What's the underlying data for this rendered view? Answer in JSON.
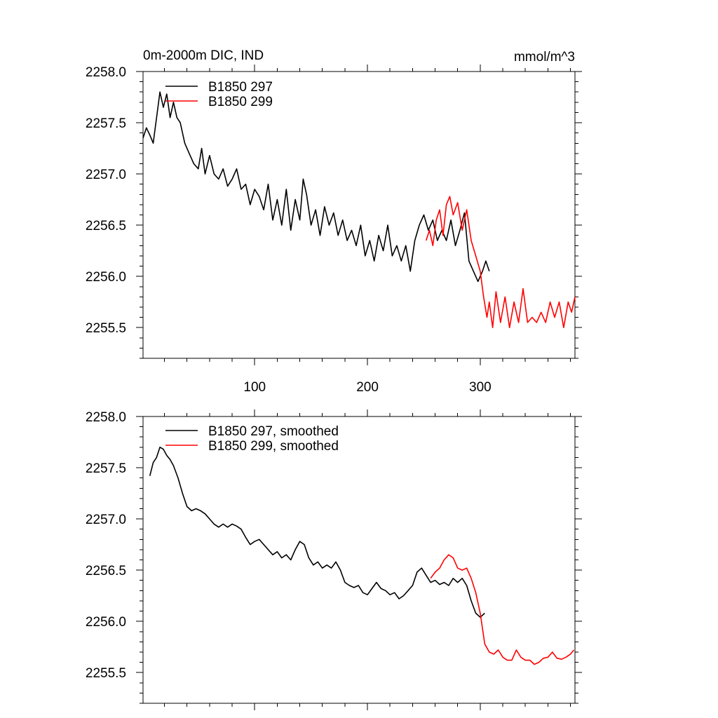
{
  "colors": {
    "black_series": "#000000",
    "red_series": "#ff0000"
  },
  "chart_data": [
    {
      "type": "line",
      "title": "0m-2000m DIC, IND",
      "units": "mmol/m^3",
      "xlim": [
        1,
        384
      ],
      "ylim": [
        2255.2,
        2258.0
      ],
      "xticks": [
        100,
        200,
        300
      ],
      "xtick_labels": [
        "100",
        "200",
        "300"
      ],
      "yticks": [
        2255.5,
        2256.0,
        2256.5,
        2257.0,
        2257.5,
        2258.0
      ],
      "ytick_labels": [
        "2255.5",
        "2256.0",
        "2256.5",
        "2257.0",
        "2257.5",
        "2258.0"
      ],
      "legend_position": "top-left",
      "series": [
        {
          "name": "B1850 297",
          "color": "#000000",
          "points": [
            [
              1,
              2257.35
            ],
            [
              4,
              2257.45
            ],
            [
              7,
              2257.38
            ],
            [
              10,
              2257.3
            ],
            [
              13,
              2257.55
            ],
            [
              16,
              2257.8
            ],
            [
              19,
              2257.65
            ],
            [
              22,
              2257.78
            ],
            [
              25,
              2257.55
            ],
            [
              28,
              2257.7
            ],
            [
              31,
              2257.55
            ],
            [
              34,
              2257.5
            ],
            [
              38,
              2257.3
            ],
            [
              42,
              2257.2
            ],
            [
              46,
              2257.1
            ],
            [
              50,
              2257.05
            ],
            [
              53,
              2257.25
            ],
            [
              56,
              2257.0
            ],
            [
              60,
              2257.18
            ],
            [
              64,
              2257.0
            ],
            [
              68,
              2256.95
            ],
            [
              72,
              2257.05
            ],
            [
              76,
              2256.88
            ],
            [
              80,
              2256.95
            ],
            [
              84,
              2257.05
            ],
            [
              88,
              2256.85
            ],
            [
              92,
              2256.9
            ],
            [
              96,
              2256.7
            ],
            [
              100,
              2256.85
            ],
            [
              104,
              2256.78
            ],
            [
              108,
              2256.65
            ],
            [
              112,
              2256.9
            ],
            [
              116,
              2256.55
            ],
            [
              120,
              2256.75
            ],
            [
              124,
              2256.5
            ],
            [
              128,
              2256.85
            ],
            [
              132,
              2256.45
            ],
            [
              136,
              2256.75
            ],
            [
              140,
              2256.55
            ],
            [
              143,
              2256.95
            ],
            [
              146,
              2256.8
            ],
            [
              150,
              2256.5
            ],
            [
              154,
              2256.65
            ],
            [
              158,
              2256.4
            ],
            [
              162,
              2256.68
            ],
            [
              166,
              2256.5
            ],
            [
              170,
              2256.62
            ],
            [
              174,
              2256.4
            ],
            [
              178,
              2256.55
            ],
            [
              182,
              2256.35
            ],
            [
              186,
              2256.45
            ],
            [
              190,
              2256.3
            ],
            [
              194,
              2256.5
            ],
            [
              198,
              2256.2
            ],
            [
              202,
              2256.35
            ],
            [
              206,
              2256.15
            ],
            [
              210,
              2256.4
            ],
            [
              214,
              2256.25
            ],
            [
              218,
              2256.5
            ],
            [
              222,
              2256.2
            ],
            [
              226,
              2256.3
            ],
            [
              230,
              2256.15
            ],
            [
              234,
              2256.3
            ],
            [
              238,
              2256.05
            ],
            [
              242,
              2256.35
            ],
            [
              246,
              2256.5
            ],
            [
              250,
              2256.6
            ],
            [
              254,
              2256.45
            ],
            [
              258,
              2256.55
            ],
            [
              262,
              2256.35
            ],
            [
              266,
              2256.45
            ],
            [
              270,
              2256.35
            ],
            [
              274,
              2256.55
            ],
            [
              278,
              2256.3
            ],
            [
              282,
              2256.45
            ],
            [
              286,
              2256.62
            ],
            [
              290,
              2256.15
            ],
            [
              294,
              2256.05
            ],
            [
              298,
              2255.95
            ],
            [
              302,
              2256.05
            ],
            [
              305,
              2256.15
            ],
            [
              308,
              2256.05
            ]
          ]
        },
        {
          "name": "B1850 299",
          "color": "#ff0000",
          "points": [
            [
              252,
              2256.35
            ],
            [
              255,
              2256.45
            ],
            [
              258,
              2256.3
            ],
            [
              261,
              2256.55
            ],
            [
              264,
              2256.65
            ],
            [
              267,
              2256.4
            ],
            [
              270,
              2256.7
            ],
            [
              273,
              2256.78
            ],
            [
              276,
              2256.6
            ],
            [
              280,
              2256.72
            ],
            [
              284,
              2256.45
            ],
            [
              288,
              2256.65
            ],
            [
              292,
              2256.35
            ],
            [
              296,
              2256.2
            ],
            [
              300,
              2256.05
            ],
            [
              303,
              2255.8
            ],
            [
              306,
              2255.6
            ],
            [
              308,
              2255.75
            ],
            [
              311,
              2255.5
            ],
            [
              314,
              2255.85
            ],
            [
              318,
              2255.55
            ],
            [
              322,
              2255.8
            ],
            [
              326,
              2255.5
            ],
            [
              330,
              2255.75
            ],
            [
              334,
              2255.55
            ],
            [
              338,
              2255.88
            ],
            [
              342,
              2255.55
            ],
            [
              346,
              2255.6
            ],
            [
              350,
              2255.55
            ],
            [
              354,
              2255.65
            ],
            [
              358,
              2255.55
            ],
            [
              362,
              2255.75
            ],
            [
              366,
              2255.6
            ],
            [
              370,
              2255.75
            ],
            [
              374,
              2255.5
            ],
            [
              378,
              2255.75
            ],
            [
              381,
              2255.65
            ],
            [
              384,
              2255.8
            ]
          ]
        }
      ]
    },
    {
      "type": "line",
      "title": "",
      "units": "",
      "xlim": [
        1,
        384
      ],
      "ylim": [
        2255.2,
        2258.0
      ],
      "xticks": [
        100,
        200,
        300
      ],
      "xtick_labels": [],
      "yticks": [
        2255.5,
        2256.0,
        2256.5,
        2257.0,
        2257.5,
        2258.0
      ],
      "ytick_labels": [
        "2255.5",
        "2256.0",
        "2256.5",
        "2257.0",
        "2257.5",
        "2258.0"
      ],
      "legend_position": "top-left",
      "series": [
        {
          "name": "B1850 297, smoothed",
          "color": "#000000",
          "points": [
            [
              7,
              2257.42
            ],
            [
              10,
              2257.55
            ],
            [
              13,
              2257.6
            ],
            [
              16,
              2257.7
            ],
            [
              19,
              2257.68
            ],
            [
              22,
              2257.62
            ],
            [
              25,
              2257.58
            ],
            [
              28,
              2257.52
            ],
            [
              32,
              2257.4
            ],
            [
              36,
              2257.25
            ],
            [
              40,
              2257.12
            ],
            [
              44,
              2257.08
            ],
            [
              48,
              2257.1
            ],
            [
              52,
              2257.08
            ],
            [
              56,
              2257.05
            ],
            [
              60,
              2257.0
            ],
            [
              64,
              2256.95
            ],
            [
              68,
              2256.92
            ],
            [
              72,
              2256.95
            ],
            [
              76,
              2256.92
            ],
            [
              80,
              2256.95
            ],
            [
              84,
              2256.93
            ],
            [
              88,
              2256.9
            ],
            [
              92,
              2256.82
            ],
            [
              96,
              2256.75
            ],
            [
              100,
              2256.78
            ],
            [
              104,
              2256.8
            ],
            [
              108,
              2256.75
            ],
            [
              112,
              2256.7
            ],
            [
              116,
              2256.65
            ],
            [
              120,
              2256.68
            ],
            [
              124,
              2256.62
            ],
            [
              128,
              2256.65
            ],
            [
              132,
              2256.6
            ],
            [
              136,
              2256.7
            ],
            [
              140,
              2256.78
            ],
            [
              144,
              2256.75
            ],
            [
              148,
              2256.62
            ],
            [
              152,
              2256.55
            ],
            [
              156,
              2256.58
            ],
            [
              160,
              2256.52
            ],
            [
              164,
              2256.55
            ],
            [
              168,
              2256.52
            ],
            [
              172,
              2256.58
            ],
            [
              176,
              2256.5
            ],
            [
              180,
              2256.38
            ],
            [
              184,
              2256.35
            ],
            [
              188,
              2256.33
            ],
            [
              192,
              2256.35
            ],
            [
              196,
              2256.28
            ],
            [
              200,
              2256.26
            ],
            [
              204,
              2256.32
            ],
            [
              208,
              2256.38
            ],
            [
              212,
              2256.32
            ],
            [
              216,
              2256.3
            ],
            [
              220,
              2256.26
            ],
            [
              224,
              2256.28
            ],
            [
              228,
              2256.22
            ],
            [
              232,
              2256.25
            ],
            [
              236,
              2256.3
            ],
            [
              240,
              2256.35
            ],
            [
              244,
              2256.48
            ],
            [
              248,
              2256.52
            ],
            [
              252,
              2256.45
            ],
            [
              256,
              2256.38
            ],
            [
              260,
              2256.4
            ],
            [
              264,
              2256.36
            ],
            [
              268,
              2256.38
            ],
            [
              272,
              2256.35
            ],
            [
              276,
              2256.42
            ],
            [
              280,
              2256.38
            ],
            [
              284,
              2256.42
            ],
            [
              288,
              2256.35
            ],
            [
              292,
              2256.2
            ],
            [
              296,
              2256.08
            ],
            [
              300,
              2256.04
            ],
            [
              304,
              2256.08
            ]
          ]
        },
        {
          "name": "B1850 299, smoothed",
          "color": "#ff0000",
          "points": [
            [
              256,
              2256.42
            ],
            [
              260,
              2256.48
            ],
            [
              264,
              2256.52
            ],
            [
              268,
              2256.6
            ],
            [
              272,
              2256.65
            ],
            [
              276,
              2256.62
            ],
            [
              280,
              2256.52
            ],
            [
              284,
              2256.5
            ],
            [
              288,
              2256.52
            ],
            [
              292,
              2256.42
            ],
            [
              296,
              2256.28
            ],
            [
              300,
              2256.08
            ],
            [
              304,
              2255.78
            ],
            [
              308,
              2255.7
            ],
            [
              312,
              2255.68
            ],
            [
              316,
              2255.72
            ],
            [
              320,
              2255.65
            ],
            [
              324,
              2255.62
            ],
            [
              328,
              2255.62
            ],
            [
              332,
              2255.72
            ],
            [
              336,
              2255.65
            ],
            [
              340,
              2255.62
            ],
            [
              344,
              2255.62
            ],
            [
              348,
              2255.58
            ],
            [
              352,
              2255.6
            ],
            [
              356,
              2255.64
            ],
            [
              360,
              2255.65
            ],
            [
              364,
              2255.7
            ],
            [
              368,
              2255.64
            ],
            [
              372,
              2255.63
            ],
            [
              376,
              2255.65
            ],
            [
              380,
              2255.68
            ],
            [
              383,
              2255.72
            ]
          ]
        }
      ]
    }
  ]
}
